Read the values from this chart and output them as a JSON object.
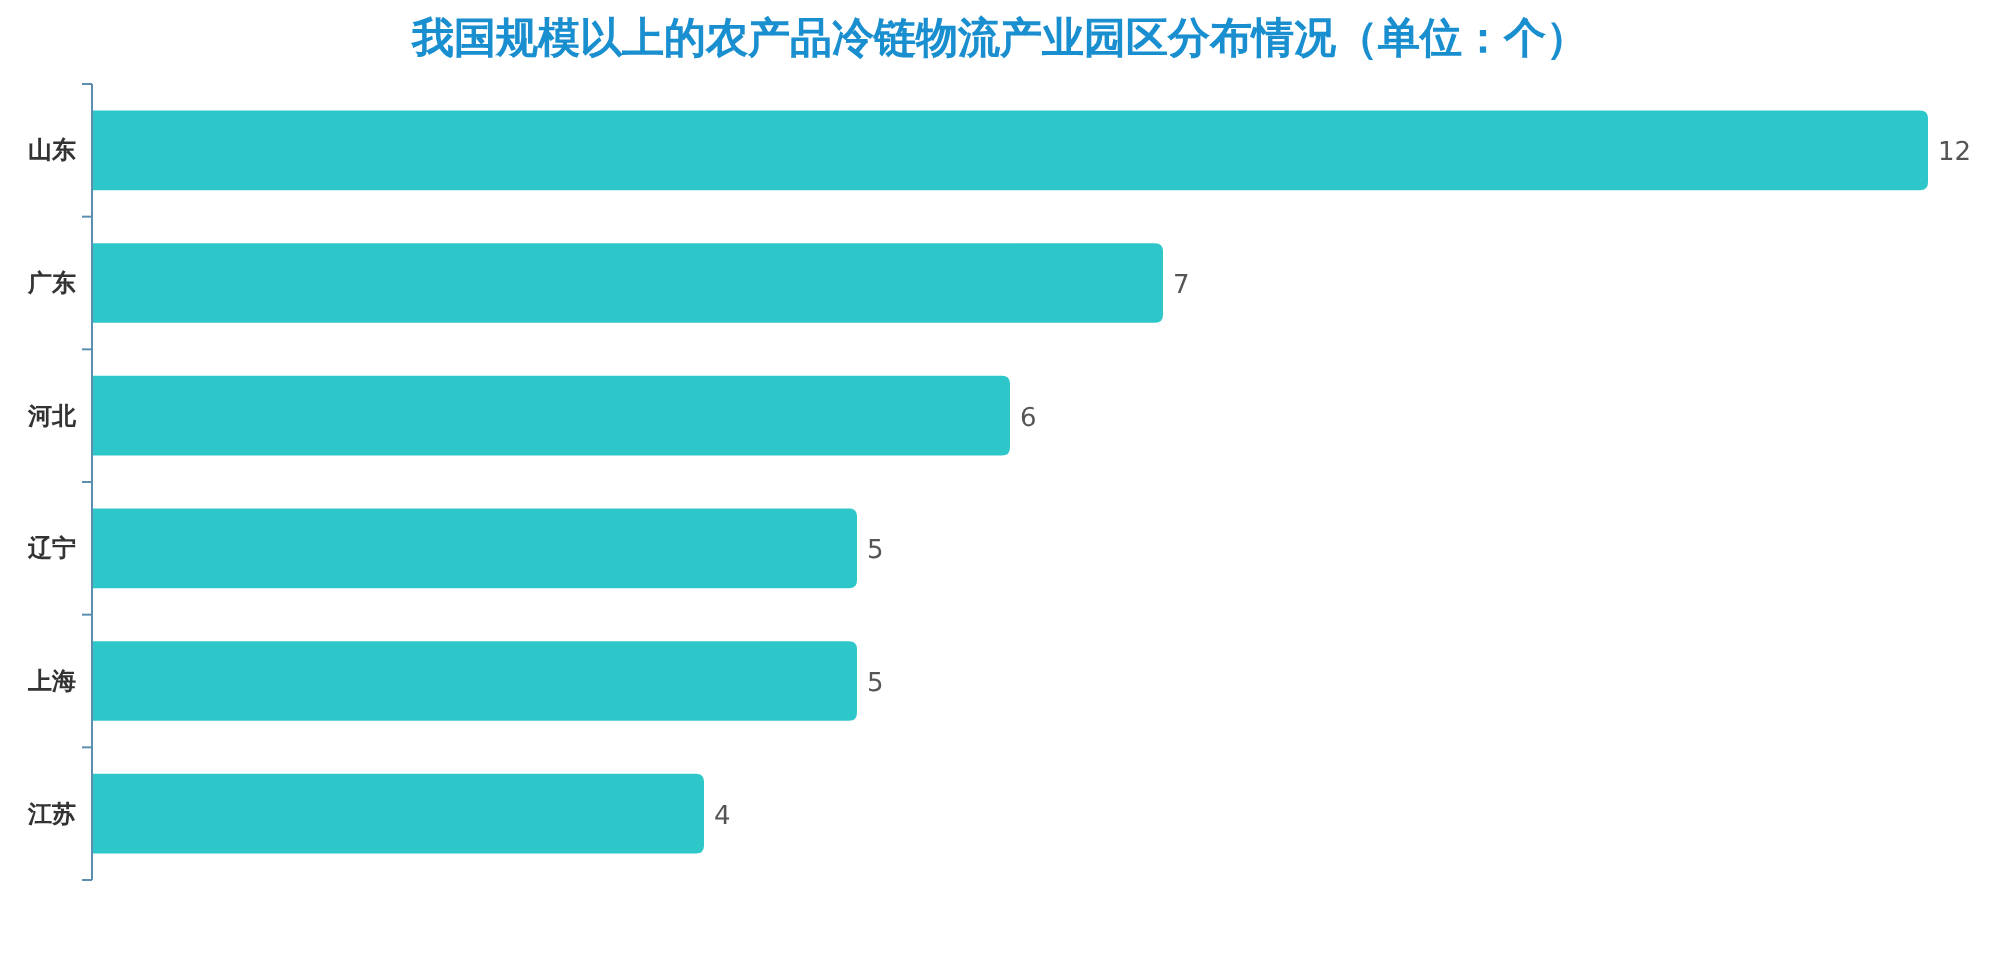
{
  "chart_data": {
    "type": "bar",
    "orientation": "horizontal",
    "title": "我国规模以上的农产品冷链物流产业园区分布情况（单位：个）",
    "categories": [
      "山东",
      "广东",
      "河北",
      "辽宁",
      "上海",
      "江苏"
    ],
    "values": [
      12,
      7,
      6,
      5,
      5,
      4
    ],
    "color": "#2ec7c9",
    "data_labels": true
  }
}
